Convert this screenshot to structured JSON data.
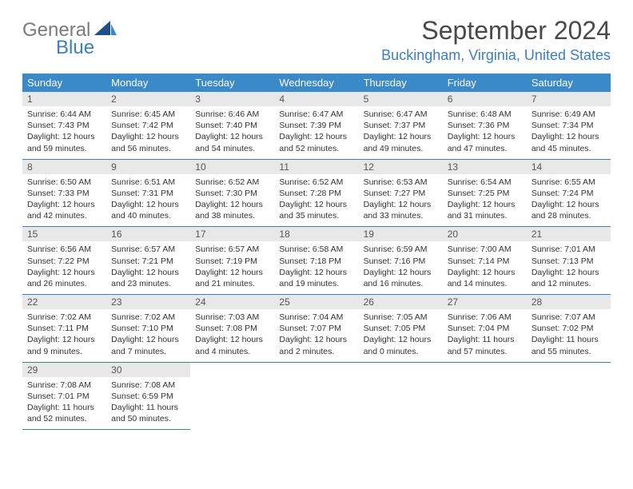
{
  "brand": {
    "name_gray": "General",
    "name_blue": "Blue"
  },
  "title": "September 2024",
  "location": "Buckingham, Virginia, United States",
  "colors": {
    "header_bg": "#3a8ac9",
    "header_fg": "#ffffff",
    "daynum_bg": "#e8e8e8",
    "rule": "#3a7fc4",
    "brand_gray": "#7a7a7a",
    "brand_blue": "#3a7fc4",
    "body_text": "#333333",
    "background": "#ffffff"
  },
  "typography": {
    "month_title_pt": 32,
    "location_pt": 18,
    "day_header_pt": 13,
    "daynum_pt": 12,
    "body_pt": 10.5
  },
  "day_headers": [
    "Sunday",
    "Monday",
    "Tuesday",
    "Wednesday",
    "Thursday",
    "Friday",
    "Saturday"
  ],
  "weeks": [
    [
      {
        "n": "1",
        "sunrise": "Sunrise: 6:44 AM",
        "sunset": "Sunset: 7:43 PM",
        "day1": "Daylight: 12 hours",
        "day2": "and 59 minutes."
      },
      {
        "n": "2",
        "sunrise": "Sunrise: 6:45 AM",
        "sunset": "Sunset: 7:42 PM",
        "day1": "Daylight: 12 hours",
        "day2": "and 56 minutes."
      },
      {
        "n": "3",
        "sunrise": "Sunrise: 6:46 AM",
        "sunset": "Sunset: 7:40 PM",
        "day1": "Daylight: 12 hours",
        "day2": "and 54 minutes."
      },
      {
        "n": "4",
        "sunrise": "Sunrise: 6:47 AM",
        "sunset": "Sunset: 7:39 PM",
        "day1": "Daylight: 12 hours",
        "day2": "and 52 minutes."
      },
      {
        "n": "5",
        "sunrise": "Sunrise: 6:47 AM",
        "sunset": "Sunset: 7:37 PM",
        "day1": "Daylight: 12 hours",
        "day2": "and 49 minutes."
      },
      {
        "n": "6",
        "sunrise": "Sunrise: 6:48 AM",
        "sunset": "Sunset: 7:36 PM",
        "day1": "Daylight: 12 hours",
        "day2": "and 47 minutes."
      },
      {
        "n": "7",
        "sunrise": "Sunrise: 6:49 AM",
        "sunset": "Sunset: 7:34 PM",
        "day1": "Daylight: 12 hours",
        "day2": "and 45 minutes."
      }
    ],
    [
      {
        "n": "8",
        "sunrise": "Sunrise: 6:50 AM",
        "sunset": "Sunset: 7:33 PM",
        "day1": "Daylight: 12 hours",
        "day2": "and 42 minutes."
      },
      {
        "n": "9",
        "sunrise": "Sunrise: 6:51 AM",
        "sunset": "Sunset: 7:31 PM",
        "day1": "Daylight: 12 hours",
        "day2": "and 40 minutes."
      },
      {
        "n": "10",
        "sunrise": "Sunrise: 6:52 AM",
        "sunset": "Sunset: 7:30 PM",
        "day1": "Daylight: 12 hours",
        "day2": "and 38 minutes."
      },
      {
        "n": "11",
        "sunrise": "Sunrise: 6:52 AM",
        "sunset": "Sunset: 7:28 PM",
        "day1": "Daylight: 12 hours",
        "day2": "and 35 minutes."
      },
      {
        "n": "12",
        "sunrise": "Sunrise: 6:53 AM",
        "sunset": "Sunset: 7:27 PM",
        "day1": "Daylight: 12 hours",
        "day2": "and 33 minutes."
      },
      {
        "n": "13",
        "sunrise": "Sunrise: 6:54 AM",
        "sunset": "Sunset: 7:25 PM",
        "day1": "Daylight: 12 hours",
        "day2": "and 31 minutes."
      },
      {
        "n": "14",
        "sunrise": "Sunrise: 6:55 AM",
        "sunset": "Sunset: 7:24 PM",
        "day1": "Daylight: 12 hours",
        "day2": "and 28 minutes."
      }
    ],
    [
      {
        "n": "15",
        "sunrise": "Sunrise: 6:56 AM",
        "sunset": "Sunset: 7:22 PM",
        "day1": "Daylight: 12 hours",
        "day2": "and 26 minutes."
      },
      {
        "n": "16",
        "sunrise": "Sunrise: 6:57 AM",
        "sunset": "Sunset: 7:21 PM",
        "day1": "Daylight: 12 hours",
        "day2": "and 23 minutes."
      },
      {
        "n": "17",
        "sunrise": "Sunrise: 6:57 AM",
        "sunset": "Sunset: 7:19 PM",
        "day1": "Daylight: 12 hours",
        "day2": "and 21 minutes."
      },
      {
        "n": "18",
        "sunrise": "Sunrise: 6:58 AM",
        "sunset": "Sunset: 7:18 PM",
        "day1": "Daylight: 12 hours",
        "day2": "and 19 minutes."
      },
      {
        "n": "19",
        "sunrise": "Sunrise: 6:59 AM",
        "sunset": "Sunset: 7:16 PM",
        "day1": "Daylight: 12 hours",
        "day2": "and 16 minutes."
      },
      {
        "n": "20",
        "sunrise": "Sunrise: 7:00 AM",
        "sunset": "Sunset: 7:14 PM",
        "day1": "Daylight: 12 hours",
        "day2": "and 14 minutes."
      },
      {
        "n": "21",
        "sunrise": "Sunrise: 7:01 AM",
        "sunset": "Sunset: 7:13 PM",
        "day1": "Daylight: 12 hours",
        "day2": "and 12 minutes."
      }
    ],
    [
      {
        "n": "22",
        "sunrise": "Sunrise: 7:02 AM",
        "sunset": "Sunset: 7:11 PM",
        "day1": "Daylight: 12 hours",
        "day2": "and 9 minutes."
      },
      {
        "n": "23",
        "sunrise": "Sunrise: 7:02 AM",
        "sunset": "Sunset: 7:10 PM",
        "day1": "Daylight: 12 hours",
        "day2": "and 7 minutes."
      },
      {
        "n": "24",
        "sunrise": "Sunrise: 7:03 AM",
        "sunset": "Sunset: 7:08 PM",
        "day1": "Daylight: 12 hours",
        "day2": "and 4 minutes."
      },
      {
        "n": "25",
        "sunrise": "Sunrise: 7:04 AM",
        "sunset": "Sunset: 7:07 PM",
        "day1": "Daylight: 12 hours",
        "day2": "and 2 minutes."
      },
      {
        "n": "26",
        "sunrise": "Sunrise: 7:05 AM",
        "sunset": "Sunset: 7:05 PM",
        "day1": "Daylight: 12 hours",
        "day2": "and 0 minutes."
      },
      {
        "n": "27",
        "sunrise": "Sunrise: 7:06 AM",
        "sunset": "Sunset: 7:04 PM",
        "day1": "Daylight: 11 hours",
        "day2": "and 57 minutes."
      },
      {
        "n": "28",
        "sunrise": "Sunrise: 7:07 AM",
        "sunset": "Sunset: 7:02 PM",
        "day1": "Daylight: 11 hours",
        "day2": "and 55 minutes."
      }
    ],
    [
      {
        "n": "29",
        "sunrise": "Sunrise: 7:08 AM",
        "sunset": "Sunset: 7:01 PM",
        "day1": "Daylight: 11 hours",
        "day2": "and 52 minutes."
      },
      {
        "n": "30",
        "sunrise": "Sunrise: 7:08 AM",
        "sunset": "Sunset: 6:59 PM",
        "day1": "Daylight: 11 hours",
        "day2": "and 50 minutes."
      },
      null,
      null,
      null,
      null,
      null
    ]
  ]
}
